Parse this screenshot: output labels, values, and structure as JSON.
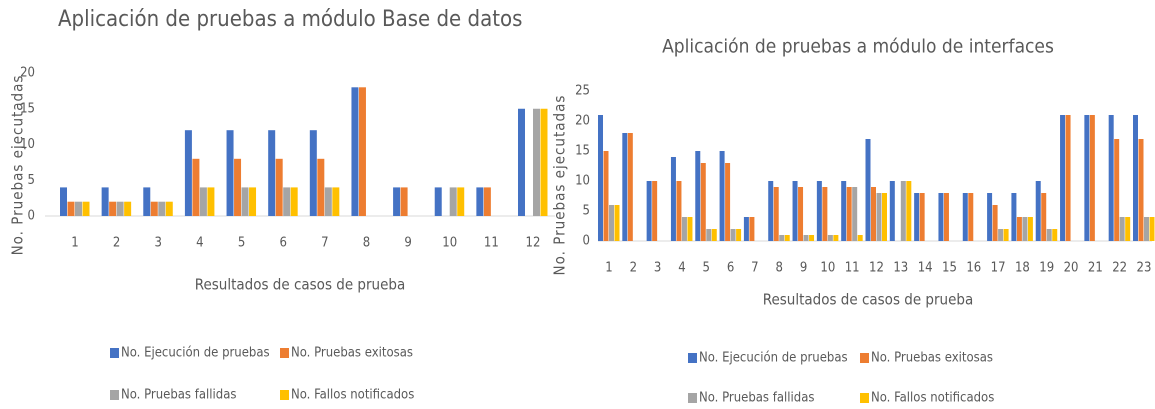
{
  "chart_data": [
    {
      "type": "bar",
      "title": "Aplicación de pruebas a módulo Base de datos",
      "x_label": "Resultados de casos de prueba",
      "y_label": "No. Pruebas ejecutadas",
      "categories": [
        1,
        2,
        3,
        4,
        5,
        6,
        7,
        8,
        9,
        10,
        11,
        12
      ],
      "series": [
        {
          "name": "No. Ejecución de pruebas",
          "color": "#4472c4",
          "values": [
            4,
            4,
            4,
            12,
            12,
            12,
            12,
            18,
            4,
            4,
            4,
            15
          ]
        },
        {
          "name": "No. Pruebas exitosas",
          "color": "#ed7d31",
          "values": [
            2,
            2,
            2,
            8,
            8,
            8,
            8,
            18,
            4,
            0,
            4,
            0
          ]
        },
        {
          "name": "No. Pruebas fallidas",
          "color": "#a5a5a5",
          "values": [
            2,
            2,
            2,
            4,
            4,
            4,
            4,
            0,
            0,
            4,
            0,
            15
          ]
        },
        {
          "name": "No. Fallos notificados",
          "color": "#ffc000",
          "values": [
            2,
            2,
            2,
            4,
            4,
            4,
            4,
            0,
            0,
            4,
            0,
            15
          ]
        }
      ],
      "ylim": [
        0,
        20
      ],
      "yticks": [
        0,
        5,
        10,
        15,
        20
      ]
    },
    {
      "type": "bar",
      "title": "Aplicación de pruebas a módulo de interfaces",
      "x_label": "Resultados de casos de prueba",
      "y_label": "No. Pruebas ejecutadas",
      "categories": [
        1,
        2,
        3,
        4,
        5,
        6,
        7,
        8,
        9,
        10,
        11,
        12,
        13,
        14,
        15,
        16,
        17,
        18,
        19,
        20,
        21,
        22,
        23
      ],
      "series": [
        {
          "name": "No. Ejecución de pruebas",
          "color": "#4472c4",
          "values": [
            21,
            18,
            10,
            14,
            15,
            15,
            4,
            10,
            10,
            10,
            10,
            17,
            10,
            8,
            8,
            8,
            8,
            8,
            10,
            21,
            21,
            21,
            21
          ]
        },
        {
          "name": "No. Pruebas exitosas",
          "color": "#ed7d31",
          "values": [
            15,
            18,
            10,
            10,
            13,
            13,
            4,
            9,
            9,
            9,
            9,
            9,
            0,
            8,
            8,
            8,
            6,
            4,
            8,
            21,
            21,
            17,
            17
          ]
        },
        {
          "name": "No. Pruebas fallidas",
          "color": "#a5a5a5",
          "values": [
            6,
            0,
            0,
            4,
            2,
            2,
            0,
            1,
            1,
            1,
            9,
            8,
            10,
            0,
            0,
            0,
            2,
            4,
            2,
            0,
            0,
            4,
            4
          ]
        },
        {
          "name": "No. Fallos notificados",
          "color": "#ffc000",
          "values": [
            6,
            0,
            0,
            4,
            2,
            2,
            0,
            1,
            1,
            1,
            1,
            8,
            10,
            0,
            0,
            0,
            2,
            4,
            2,
            0,
            0,
            4,
            4
          ]
        }
      ],
      "ylim": [
        0,
        25
      ],
      "yticks": [
        0,
        5,
        10,
        15,
        20,
        25
      ]
    }
  ]
}
